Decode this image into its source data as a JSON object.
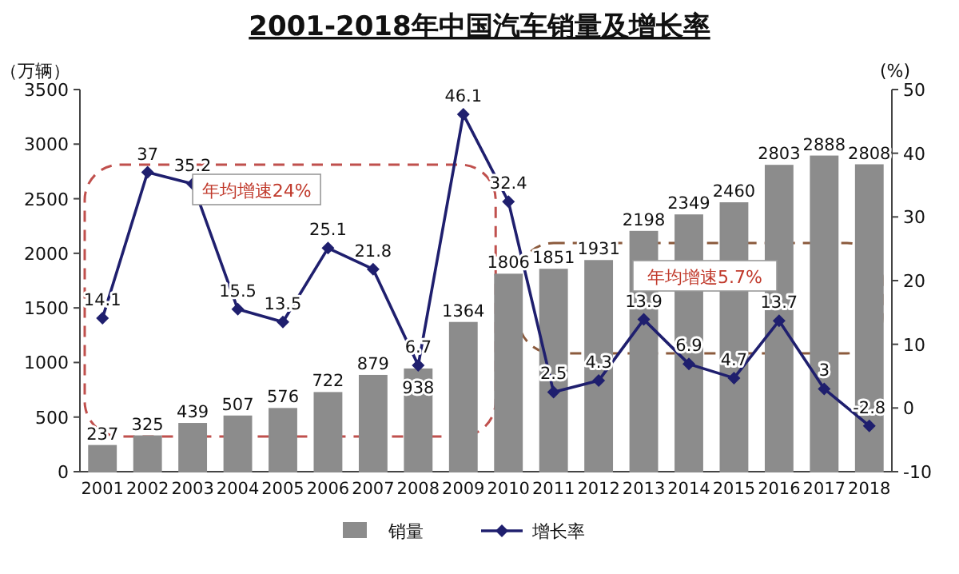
{
  "chart_data": {
    "type": "bar",
    "title": "2001-2018年中国汽车销量及增长率",
    "ylabel": "（万辆）",
    "y2label": "(%)",
    "categories": [
      "2001",
      "2002",
      "2003",
      "2004",
      "2005",
      "2006",
      "2007",
      "2008",
      "2009",
      "2010",
      "2011",
      "2012",
      "2013",
      "2014",
      "2015",
      "2016",
      "2017",
      "2018"
    ],
    "series": [
      {
        "name": "销量",
        "color": "#8c8c8c",
        "values": [
          237,
          325,
          439,
          507,
          576,
          722,
          879,
          938,
          1364,
          1806,
          1851,
          1931,
          2198,
          2349,
          2460,
          2803,
          2888,
          2808
        ]
      },
      {
        "name": "增长率",
        "type": "line",
        "axis": "y2",
        "color": "#1f1f6e",
        "marker": "diamond",
        "values": [
          14.1,
          37,
          35.2,
          15.5,
          13.5,
          25.1,
          21.8,
          6.7,
          46.1,
          32.4,
          2.5,
          4.3,
          13.9,
          6.9,
          4.7,
          13.7,
          3,
          -2.8
        ]
      }
    ],
    "ylim": [
      0,
      3500
    ],
    "yticks": [
      0,
      500,
      1000,
      1500,
      2000,
      2500,
      3000,
      3500
    ],
    "y2lim": [
      -10,
      50
    ],
    "y2ticks": [
      -10,
      0,
      10,
      20,
      30,
      40,
      50
    ],
    "data_labels": true,
    "legend": "bottom",
    "grid": false,
    "annotations": [
      "年均增速24%",
      "年均增速5.7%"
    ]
  }
}
